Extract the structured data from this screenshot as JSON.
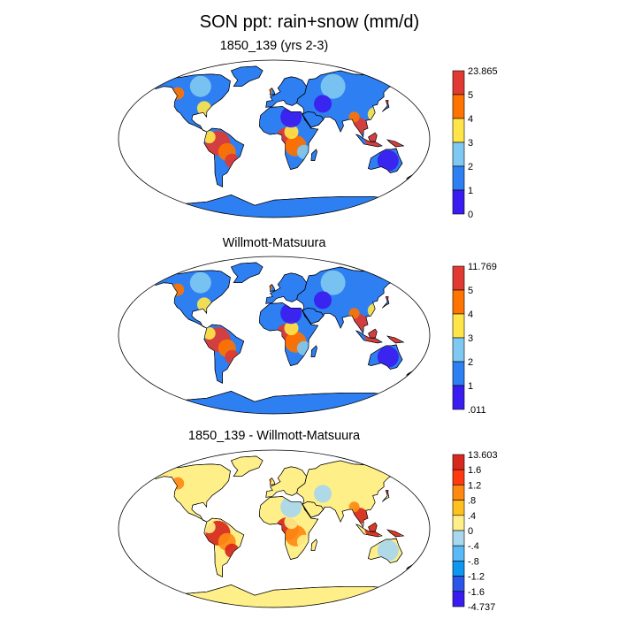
{
  "title": "SON ppt: rain+snow (mm/d)",
  "panels": [
    {
      "subtitle": "1850_139 (yrs 2-3)",
      "labels": [
        "23.865",
        "5",
        "4",
        "3",
        "2",
        "1",
        "0"
      ],
      "colors": [
        "#e03a32",
        "#ff7300",
        "#ffe54a",
        "#7fc8f2",
        "#2d7ff2",
        "#3b1cf0"
      ],
      "palette": {
        "cold": "#3b1cf0",
        "cool": "#2d7ff2",
        "light": "#7fc8f2",
        "warm": "#ff7300",
        "hot": "#e03a32",
        "mid": "#ffe54a"
      }
    },
    {
      "subtitle": "Willmott-Matsuura",
      "labels": [
        "11.769",
        "5",
        "4",
        "3",
        "2",
        "1",
        ".011"
      ],
      "colors": [
        "#e03a32",
        "#ff7300",
        "#ffe54a",
        "#7fc8f2",
        "#2d7ff2",
        "#3b1cf0"
      ],
      "palette": {
        "cold": "#3b1cf0",
        "cool": "#2d7ff2",
        "light": "#7fc8f2",
        "warm": "#ff7300",
        "hot": "#e03a32",
        "mid": "#ffe54a"
      }
    },
    {
      "subtitle": "1850_139 - Willmott-Matsuura",
      "labels": [
        "13.603",
        "1.6",
        "1.2",
        ".8",
        ".4",
        "0",
        "-.4",
        "-.8",
        "-1.2",
        "-1.6",
        "-4.737"
      ],
      "colors": [
        "#d7281e",
        "#ff3a10",
        "#ff8a12",
        "#ffc020",
        "#ffef88",
        "#a8d7ee",
        "#5bbaf5",
        "#0e96f0",
        "#2b55e8",
        "#3b1cf0"
      ],
      "palette": {
        "cold": "#a8d7ee",
        "cool": "#ffc020",
        "light": "#ffef88",
        "warm": "#ff8a12",
        "hot": "#d7281e",
        "mid": "#ffef88"
      }
    }
  ]
}
